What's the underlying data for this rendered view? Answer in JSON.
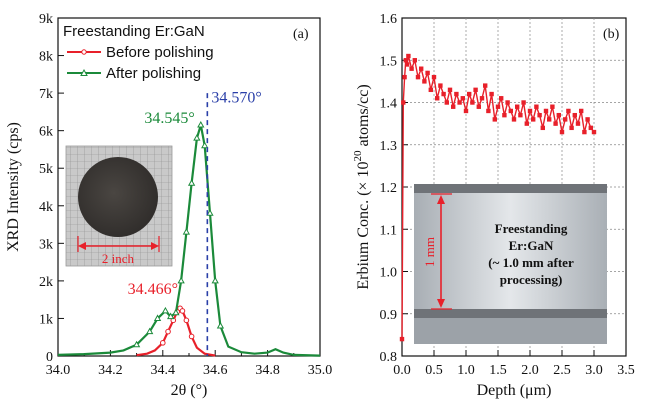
{
  "chart_data": [
    {
      "type": "line",
      "panel_label": "(a)",
      "title": "Freestanding Er:GaN",
      "xlabel": "2θ (°)",
      "ylabel": "XRD Intensity (cps)",
      "xlim": [
        34.0,
        35.0
      ],
      "ylim": [
        0,
        9000
      ],
      "xticks": [
        "34.0",
        "34.2",
        "34.4",
        "34.6",
        "34.8",
        "35.0"
      ],
      "xtick_values": [
        34.0,
        34.2,
        34.4,
        34.6,
        34.8,
        35.0
      ],
      "yticks": [
        "0",
        "1k",
        "2k",
        "3k",
        "4k",
        "5k",
        "6k",
        "7k",
        "8k",
        "9k"
      ],
      "ytick_values": [
        0,
        1000,
        2000,
        3000,
        4000,
        5000,
        6000,
        7000,
        8000,
        9000
      ],
      "legend_position": "top-left",
      "series": [
        {
          "name": "Before polishing",
          "color": "#e8202a",
          "marker": "circle",
          "x": [
            34.3,
            34.34,
            34.37,
            34.4,
            34.42,
            34.44,
            34.455,
            34.466,
            34.475,
            34.49,
            34.51,
            34.53,
            34.56,
            34.6
          ],
          "y": [
            20,
            60,
            150,
            350,
            650,
            950,
            1180,
            1270,
            1200,
            950,
            520,
            220,
            60,
            10
          ]
        },
        {
          "name": "After polishing",
          "color": "#1b8a3a",
          "marker": "triangle",
          "x": [
            34.0,
            34.1,
            34.2,
            34.25,
            34.3,
            34.35,
            34.38,
            34.41,
            34.43,
            34.45,
            34.47,
            34.49,
            34.51,
            34.53,
            34.545,
            34.56,
            34.58,
            34.6,
            34.62,
            34.65,
            34.7,
            34.75,
            34.8,
            34.83,
            34.86,
            34.9,
            35.0
          ],
          "y": [
            30,
            50,
            90,
            150,
            300,
            650,
            1000,
            1200,
            1050,
            1150,
            2000,
            3300,
            4600,
            5800,
            6150,
            5600,
            3800,
            2000,
            800,
            250,
            100,
            60,
            90,
            180,
            90,
            30,
            10
          ]
        }
      ],
      "annotations": [
        {
          "text": "34.570°",
          "color": "#2a3fa8",
          "x": 34.57
        },
        {
          "text": "34.545°",
          "color": "#1b8a3a",
          "x": 34.545
        },
        {
          "text": "34.466°",
          "color": "#e8202a",
          "x": 34.466
        }
      ],
      "inset": {
        "label": "2 inch"
      }
    },
    {
      "type": "line",
      "panel_label": "(b)",
      "xlabel": "Depth (μm)",
      "ylabel_main": "Erbium Conc. (× 10",
      "ylabel_sup": "20",
      "ylabel_tail": " atoms/cc)",
      "xlim": [
        0.0,
        3.5
      ],
      "ylim": [
        0.8,
        1.6
      ],
      "xticks": [
        "0.0",
        "0.5",
        "1.0",
        "1.5",
        "2.0",
        "2.5",
        "3.0",
        "3.5"
      ],
      "xtick_values": [
        0.0,
        0.5,
        1.0,
        1.5,
        2.0,
        2.5,
        3.0,
        3.5
      ],
      "yticks": [
        "0.8",
        "0.9",
        "1.0",
        "1.1",
        "1.2",
        "1.3",
        "1.4",
        "1.5",
        "1.6"
      ],
      "ytick_values": [
        0.8,
        0.9,
        1.0,
        1.1,
        1.2,
        1.3,
        1.4,
        1.5,
        1.6
      ],
      "grid": true,
      "series": [
        {
          "color": "#e8202a",
          "marker": "square",
          "x": [
            0.0,
            0.02,
            0.04,
            0.06,
            0.08,
            0.1,
            0.15,
            0.2,
            0.25,
            0.3,
            0.35,
            0.4,
            0.45,
            0.5,
            0.55,
            0.6,
            0.65,
            0.7,
            0.75,
            0.8,
            0.85,
            0.9,
            0.95,
            1.0,
            1.05,
            1.1,
            1.15,
            1.2,
            1.25,
            1.3,
            1.35,
            1.4,
            1.45,
            1.5,
            1.55,
            1.6,
            1.65,
            1.7,
            1.75,
            1.8,
            1.85,
            1.9,
            1.95,
            2.0,
            2.05,
            2.1,
            2.15,
            2.2,
            2.25,
            2.3,
            2.35,
            2.4,
            2.45,
            2.5,
            2.55,
            2.6,
            2.65,
            2.7,
            2.75,
            2.8,
            2.85,
            2.9,
            2.95,
            3.0
          ],
          "y": [
            0.84,
            1.4,
            1.46,
            1.5,
            1.49,
            1.51,
            1.48,
            1.5,
            1.46,
            1.48,
            1.45,
            1.47,
            1.43,
            1.46,
            1.41,
            1.44,
            1.42,
            1.4,
            1.43,
            1.39,
            1.42,
            1.4,
            1.41,
            1.38,
            1.42,
            1.4,
            1.43,
            1.39,
            1.41,
            1.44,
            1.38,
            1.42,
            1.36,
            1.39,
            1.41,
            1.37,
            1.4,
            1.38,
            1.36,
            1.39,
            1.37,
            1.4,
            1.35,
            1.38,
            1.36,
            1.39,
            1.37,
            1.34,
            1.38,
            1.36,
            1.39,
            1.35,
            1.37,
            1.33,
            1.36,
            1.38,
            1.34,
            1.37,
            1.35,
            1.38,
            1.33,
            1.36,
            1.34,
            1.33
          ]
        }
      ],
      "inset": {
        "title": [
          "Freestanding",
          "Er:GaN",
          "(~ 1.0 mm after",
          "processing)"
        ],
        "scale_label": "1 mm"
      }
    }
  ]
}
